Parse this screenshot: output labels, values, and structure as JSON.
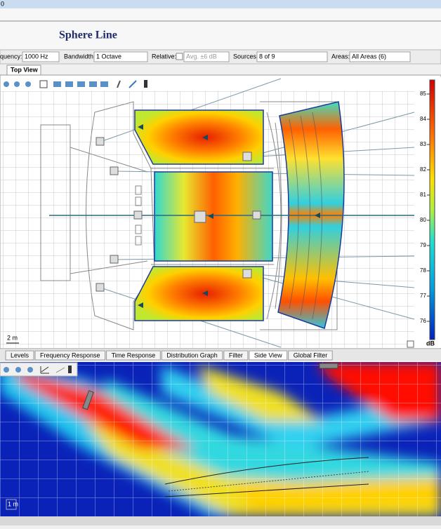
{
  "window": {
    "title": "0"
  },
  "header": {
    "title": "Sphere Line"
  },
  "toolbar": {
    "frequency": {
      "label": "quency:",
      "value": "1000 Hz"
    },
    "bandwidth": {
      "label": "Bandwidth:",
      "value": "1 Octave"
    },
    "relative": {
      "label": "Relative:",
      "value": "Avg. ±6 dB"
    },
    "sources": {
      "label": "Sources:",
      "value": "8 of 9"
    },
    "areas": {
      "label": "Areas:",
      "value": "All Areas (6)"
    }
  },
  "top_view": {
    "tab": "Top View",
    "scale": "2 m",
    "colorbar": {
      "ticks": [
        85,
        84,
        83,
        82,
        81,
        80,
        79,
        78,
        77,
        76
      ],
      "unit": "dB"
    }
  },
  "bottom_tabs": [
    "Levels",
    "Frequency Response",
    "Time Response",
    "Distribution Graph",
    "Filter",
    "Side View",
    "Global Filter"
  ],
  "side_view": {
    "scale": "1 m"
  }
}
